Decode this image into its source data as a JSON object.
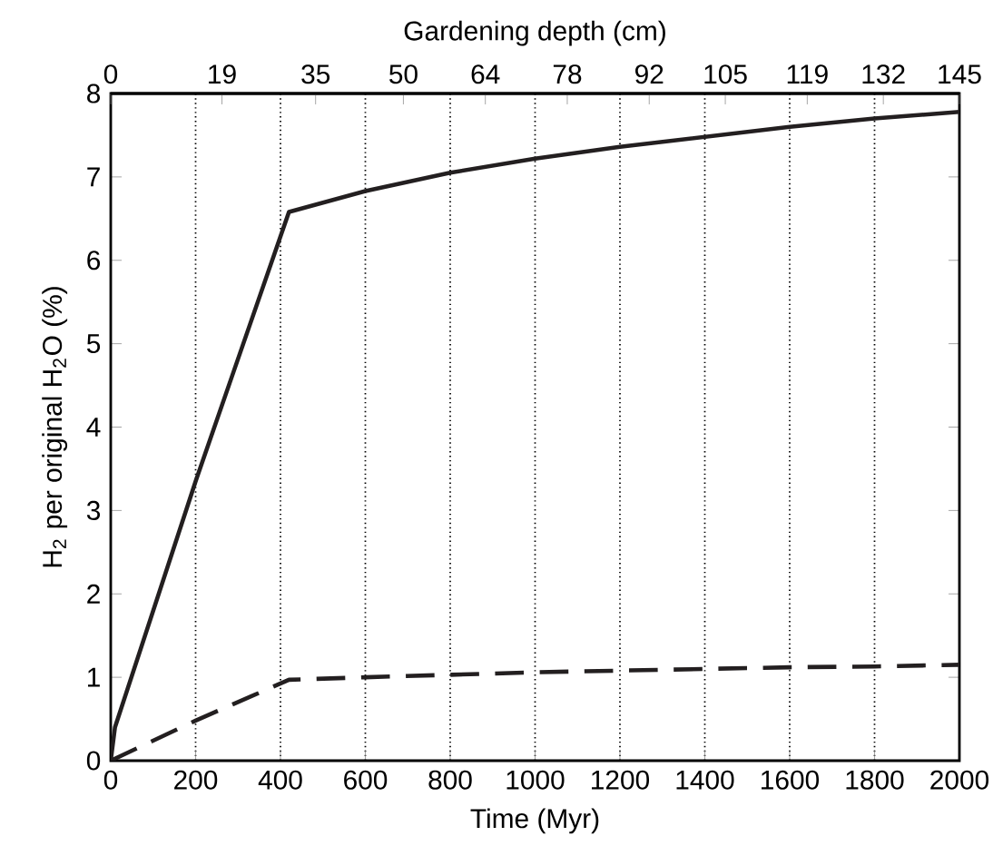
{
  "chart_data": {
    "type": "line",
    "xlabel": "Time (Myr)",
    "ylabel": "H$_{2}$ per original H$_{2}$O (%)",
    "x2label": "Gardening depth (cm)",
    "xlim": [
      0,
      2000
    ],
    "xticks": [
      0,
      200,
      400,
      600,
      800,
      1000,
      1200,
      1400,
      1600,
      1800,
      2000
    ],
    "ylim": [
      0,
      8
    ],
    "yticks": [
      0,
      1,
      2,
      3,
      4,
      5,
      6,
      7,
      8
    ],
    "x2lim": [
      0,
      145
    ],
    "x2ticks": [
      0,
      19,
      35,
      50,
      64,
      78,
      92,
      105,
      119,
      132,
      145
    ],
    "grid": "x",
    "marker": "none",
    "series": [
      {
        "color": "#231f20",
        "line_style": "solid",
        "x": [
          0,
          10,
          200,
          420,
          600,
          800,
          1000,
          1200,
          1400,
          1600,
          1800,
          2000
        ],
        "values": [
          0,
          0.4,
          3.35,
          6.58,
          6.83,
          7.05,
          7.22,
          7.36,
          7.48,
          7.6,
          7.7,
          7.78
        ]
      },
      {
        "color": "#231f20",
        "line_style": "dashed",
        "x": [
          0,
          200,
          420,
          600,
          800,
          1000,
          1200,
          1400,
          1600,
          1800,
          2000
        ],
        "values": [
          0,
          0.48,
          0.97,
          1.0,
          1.03,
          1.06,
          1.08,
          1.1,
          1.12,
          1.13,
          1.15
        ]
      }
    ]
  }
}
